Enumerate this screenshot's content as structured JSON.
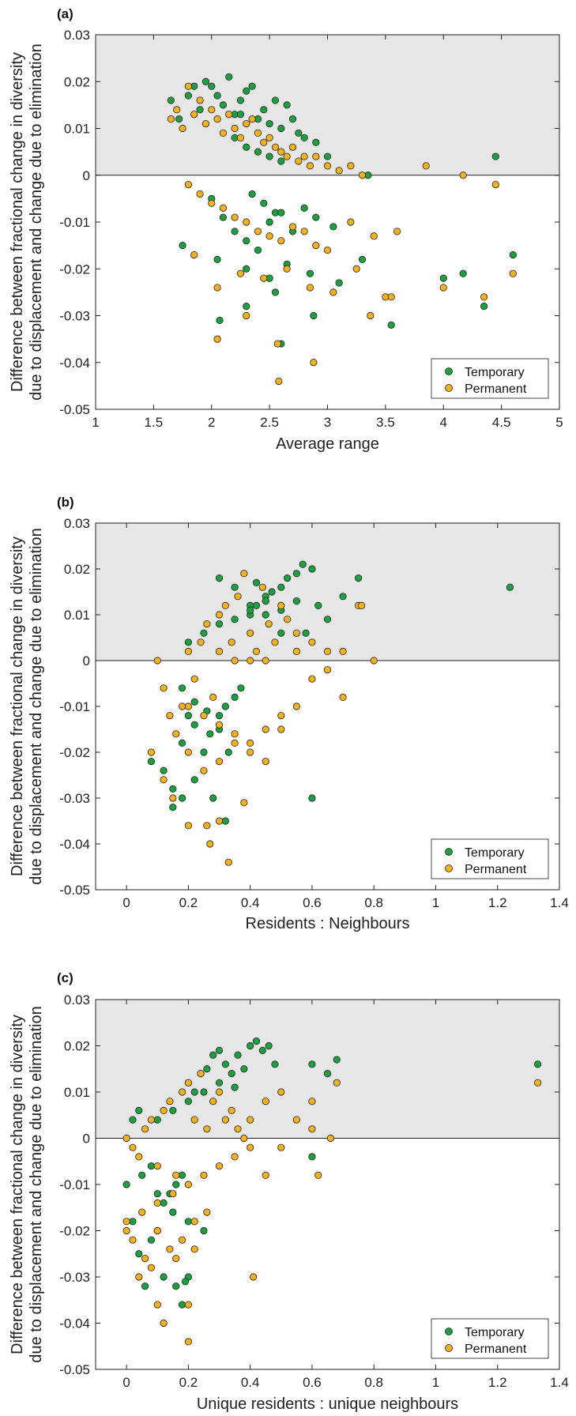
{
  "colors": {
    "temporary": "#1aa040",
    "permanent": "#f5b21c",
    "shade": "#e6e6e6",
    "edge": "#222222"
  },
  "shared_ylabel": [
    "Difference between fractional change in diversity",
    "due to displacement and change due to elimination"
  ],
  "legend": {
    "temporary": "Temporary",
    "permanent": "Permanent",
    "placement": "bottom-right"
  },
  "chart_data": [
    {
      "type": "scatter",
      "panel": "(a)",
      "xlabel": "Average range",
      "xlim": [
        1,
        5
      ],
      "ylim": [
        -0.05,
        0.03
      ],
      "xticks": [
        1,
        1.5,
        2,
        2.5,
        3,
        3.5,
        4,
        4.5,
        5
      ],
      "xtick_labels": [
        "1",
        "1.5",
        "2",
        "2.5",
        "3",
        "3.5",
        "4",
        "4.5",
        "5"
      ],
      "yticks": [
        -0.05,
        -0.04,
        -0.03,
        -0.02,
        -0.01,
        0,
        0.01,
        0.02,
        0.03
      ],
      "ytick_labels": [
        "-0.05",
        "-0.04",
        "-0.03",
        "-0.02",
        "-0.01",
        "0",
        "0.01",
        "0.02",
        "0.03"
      ],
      "shaded_region": [
        0,
        0.03
      ],
      "grid": false,
      "series": [
        {
          "name": "Temporary",
          "x": [
            1.65,
            1.72,
            1.8,
            1.85,
            1.9,
            1.95,
            2.0,
            2.05,
            2.1,
            2.15,
            2.2,
            2.25,
            2.3,
            2.35,
            2.4,
            2.45,
            2.5,
            2.55,
            2.6,
            2.65,
            2.7,
            2.75,
            2.8,
            2.9,
            3.0,
            2.2,
            2.3,
            2.4,
            2.5,
            2.6,
            2.35,
            2.45,
            2.55,
            2.0,
            2.1,
            2.2,
            2.3,
            2.4,
            2.5,
            2.6,
            2.7,
            2.8,
            2.9,
            3.05,
            1.75,
            2.05,
            2.3,
            2.5,
            2.65,
            2.85,
            3.1,
            3.3,
            3.55,
            4.0,
            4.17,
            4.35,
            4.45,
            4.6,
            2.07,
            2.3,
            2.55,
            2.88,
            3.35,
            2.6,
            2.25
          ],
          "y": [
            0.016,
            0.012,
            0.017,
            0.019,
            0.014,
            0.02,
            0.019,
            0.017,
            0.015,
            0.021,
            0.013,
            0.016,
            0.018,
            0.019,
            0.012,
            0.014,
            0.011,
            0.016,
            0.01,
            0.015,
            0.012,
            0.009,
            0.008,
            0.007,
            0.004,
            0.008,
            0.006,
            0.005,
            0.004,
            0.003,
            -0.004,
            -0.006,
            -0.008,
            -0.005,
            -0.009,
            -0.012,
            -0.014,
            -0.016,
            -0.01,
            -0.008,
            -0.012,
            -0.007,
            -0.009,
            -0.011,
            -0.015,
            -0.018,
            -0.02,
            -0.022,
            -0.019,
            -0.021,
            -0.023,
            -0.018,
            -0.032,
            -0.022,
            -0.021,
            -0.028,
            0.004,
            -0.017,
            -0.031,
            -0.028,
            -0.025,
            -0.03,
            0.0,
            -0.036,
            0.013
          ]
        },
        {
          "name": "Permanent",
          "x": [
            1.65,
            1.7,
            1.75,
            1.8,
            1.85,
            1.9,
            1.95,
            2.0,
            2.05,
            2.1,
            2.15,
            2.2,
            2.25,
            2.3,
            2.35,
            2.4,
            2.45,
            2.5,
            2.55,
            2.6,
            2.65,
            2.7,
            2.75,
            2.8,
            2.85,
            2.9,
            3.0,
            3.1,
            3.2,
            3.3,
            1.8,
            1.9,
            2.0,
            2.1,
            2.2,
            2.3,
            2.4,
            2.5,
            2.6,
            2.7,
            2.8,
            2.9,
            3.0,
            3.2,
            3.4,
            3.6,
            1.85,
            2.05,
            2.25,
            2.45,
            2.65,
            2.85,
            3.05,
            3.25,
            3.5,
            3.85,
            4.0,
            4.17,
            4.35,
            4.45,
            4.6,
            2.05,
            2.3,
            2.58,
            2.88,
            3.37,
            3.55,
            2.57
          ],
          "y": [
            0.012,
            0.014,
            0.01,
            0.019,
            0.013,
            0.016,
            0.011,
            0.014,
            0.012,
            0.009,
            0.013,
            0.01,
            0.008,
            0.011,
            0.012,
            0.009,
            0.007,
            0.008,
            0.006,
            0.005,
            0.004,
            0.006,
            0.003,
            0.004,
            0.002,
            0.004,
            0.002,
            0.001,
            0.002,
            0.0,
            -0.002,
            -0.004,
            -0.006,
            -0.007,
            -0.009,
            -0.01,
            -0.012,
            -0.013,
            -0.014,
            -0.011,
            -0.012,
            -0.015,
            -0.016,
            -0.01,
            -0.013,
            -0.012,
            -0.017,
            -0.024,
            -0.021,
            -0.022,
            -0.02,
            -0.024,
            -0.025,
            -0.02,
            -0.026,
            0.002,
            -0.024,
            0.0,
            -0.026,
            -0.002,
            -0.021,
            -0.035,
            -0.03,
            -0.044,
            -0.04,
            -0.03,
            -0.026,
            -0.036
          ]
        }
      ]
    },
    {
      "type": "scatter",
      "panel": "(b)",
      "xlabel": "Residents : Neighbours",
      "xlim": [
        -0.1,
        1.4
      ],
      "ylim": [
        -0.05,
        0.03
      ],
      "xticks": [
        0,
        0.2,
        0.4,
        0.6,
        0.8,
        1,
        1.2,
        1.4
      ],
      "xtick_labels": [
        "0",
        "0.2",
        "0.4",
        "0.6",
        "0.8",
        "1",
        "1.2",
        "1.4"
      ],
      "yticks": [
        -0.05,
        -0.04,
        -0.03,
        -0.02,
        -0.01,
        0,
        0.01,
        0.02,
        0.03
      ],
      "ytick_labels": [
        "-0.05",
        "-0.04",
        "-0.03",
        "-0.02",
        "-0.01",
        "0",
        "0.01",
        "0.02",
        "0.03"
      ],
      "shaded_region": [
        0,
        0.03
      ],
      "grid": false,
      "series": [
        {
          "name": "Temporary",
          "x": [
            0.08,
            0.12,
            0.15,
            0.18,
            0.2,
            0.22,
            0.25,
            0.27,
            0.3,
            0.32,
            0.35,
            0.37,
            0.4,
            0.42,
            0.45,
            0.47,
            0.5,
            0.52,
            0.55,
            0.57,
            0.6,
            0.62,
            0.65,
            0.7,
            0.75,
            0.3,
            0.35,
            0.4,
            0.45,
            0.5,
            0.55,
            0.2,
            0.25,
            0.3,
            0.35,
            0.4,
            0.45,
            0.18,
            0.22,
            0.26,
            0.3,
            0.33,
            0.15,
            0.18,
            0.22,
            0.28,
            0.32,
            0.6,
            1.24,
            0.58,
            0.5,
            0.42
          ],
          "y": [
            -0.022,
            -0.024,
            -0.028,
            -0.018,
            -0.012,
            -0.014,
            -0.02,
            -0.016,
            -0.012,
            -0.01,
            -0.008,
            -0.006,
            0.01,
            0.012,
            0.014,
            0.015,
            0.016,
            0.018,
            0.019,
            0.021,
            0.02,
            0.012,
            0.009,
            0.014,
            0.018,
            0.018,
            0.016,
            0.012,
            0.01,
            0.011,
            0.013,
            0.004,
            0.006,
            0.008,
            0.009,
            0.011,
            0.013,
            -0.006,
            -0.009,
            -0.011,
            -0.015,
            -0.02,
            -0.032,
            -0.03,
            -0.026,
            -0.03,
            -0.035,
            -0.03,
            0.016,
            0.006,
            0.006,
            0.017
          ]
        },
        {
          "name": "Permanent",
          "x": [
            0.1,
            0.12,
            0.14,
            0.16,
            0.18,
            0.2,
            0.22,
            0.24,
            0.26,
            0.28,
            0.3,
            0.32,
            0.34,
            0.36,
            0.38,
            0.4,
            0.42,
            0.44,
            0.46,
            0.48,
            0.5,
            0.52,
            0.55,
            0.6,
            0.65,
            0.7,
            0.75,
            0.8,
            0.2,
            0.25,
            0.3,
            0.35,
            0.4,
            0.45,
            0.5,
            0.55,
            0.6,
            0.65,
            0.7,
            0.2,
            0.25,
            0.3,
            0.35,
            0.4,
            0.45,
            0.5,
            0.3,
            0.35,
            0.4,
            0.45,
            0.55,
            0.08,
            0.12,
            0.15,
            0.2,
            0.27,
            0.3,
            0.33,
            0.38,
            0.26,
            0.76
          ],
          "y": [
            0.0,
            -0.006,
            -0.012,
            -0.016,
            -0.01,
            0.002,
            -0.004,
            0.004,
            0.008,
            -0.008,
            0.01,
            0.012,
            0.004,
            0.014,
            0.019,
            0.006,
            0.002,
            0.016,
            0.008,
            0.004,
            0.012,
            0.009,
            0.006,
            0.004,
            0.002,
            0.002,
            0.012,
            0.0,
            -0.01,
            -0.012,
            -0.014,
            -0.016,
            -0.018,
            -0.015,
            -0.012,
            -0.01,
            -0.004,
            -0.002,
            -0.008,
            -0.02,
            -0.024,
            -0.022,
            -0.018,
            -0.02,
            -0.022,
            -0.015,
            0.002,
            0.0,
            0.0,
            0.0,
            0.002,
            -0.02,
            -0.026,
            -0.03,
            -0.036,
            -0.04,
            -0.035,
            -0.044,
            -0.031,
            -0.036,
            0.012
          ]
        }
      ]
    },
    {
      "type": "scatter",
      "panel": "(c)",
      "xlabel": "Unique residents : unique neighbours",
      "xlim": [
        -0.1,
        1.4
      ],
      "ylim": [
        -0.05,
        0.03
      ],
      "xticks": [
        0,
        0.2,
        0.4,
        0.6,
        0.8,
        1,
        1.2,
        1.4
      ],
      "xtick_labels": [
        "0",
        "0.2",
        "0.4",
        "0.6",
        "0.8",
        "1",
        "1.2",
        "1.4"
      ],
      "yticks": [
        -0.05,
        -0.04,
        -0.03,
        -0.02,
        -0.01,
        0,
        0.01,
        0.02,
        0.03
      ],
      "ytick_labels": [
        "-0.05",
        "-0.04",
        "-0.03",
        "-0.02",
        "-0.01",
        "0",
        "0.01",
        "0.02",
        "0.03"
      ],
      "shaded_region": [
        0,
        0.03
      ],
      "grid": false,
      "series": [
        {
          "name": "Temporary",
          "x": [
            0.0,
            0.02,
            0.04,
            0.06,
            0.08,
            0.1,
            0.12,
            0.14,
            0.16,
            0.18,
            0.2,
            0.22,
            0.24,
            0.26,
            0.28,
            0.3,
            0.32,
            0.34,
            0.36,
            0.38,
            0.4,
            0.42,
            0.44,
            0.46,
            0.48,
            0.6,
            0.65,
            0.68,
            0.6,
            0.1,
            0.15,
            0.2,
            0.25,
            0.3,
            0.35,
            0.05,
            0.1,
            0.15,
            0.2,
            0.25,
            0.12,
            0.16,
            0.2,
            1.33,
            0.02,
            0.04,
            0.08,
            0.18,
            0.19
          ],
          "y": [
            -0.01,
            -0.018,
            -0.025,
            -0.032,
            -0.022,
            -0.02,
            -0.014,
            -0.012,
            -0.01,
            -0.008,
            0.012,
            0.01,
            0.014,
            0.015,
            0.018,
            0.019,
            0.016,
            0.014,
            0.018,
            0.015,
            0.02,
            0.021,
            0.019,
            0.02,
            0.016,
            0.016,
            0.014,
            0.017,
            -0.004,
            0.004,
            0.006,
            0.008,
            0.01,
            0.012,
            0.011,
            -0.008,
            -0.012,
            -0.016,
            -0.018,
            -0.02,
            -0.03,
            -0.032,
            -0.03,
            0.016,
            0.004,
            0.006,
            -0.006,
            -0.036,
            -0.031
          ]
        },
        {
          "name": "Permanent",
          "x": [
            0.0,
            0.02,
            0.04,
            0.06,
            0.08,
            0.1,
            0.12,
            0.14,
            0.16,
            0.18,
            0.2,
            0.22,
            0.24,
            0.26,
            0.28,
            0.3,
            0.32,
            0.34,
            0.36,
            0.38,
            0.4,
            0.45,
            0.5,
            0.55,
            0.6,
            0.66,
            0.68,
            0.0,
            0.05,
            0.1,
            0.15,
            0.2,
            0.25,
            0.3,
            0.35,
            0.4,
            0.45,
            0.5,
            0.6,
            0.62,
            0.02,
            0.06,
            0.1,
            0.14,
            0.18,
            0.22,
            0.26,
            0.1,
            0.12,
            0.2,
            0.41,
            1.33,
            0.0,
            0.04,
            0.08,
            0.16,
            0.2,
            0.22
          ],
          "y": [
            0.0,
            -0.002,
            -0.004,
            0.002,
            0.004,
            -0.006,
            0.006,
            0.008,
            -0.008,
            0.01,
            0.012,
            0.004,
            0.014,
            0.002,
            0.008,
            0.01,
            0.004,
            0.006,
            0.002,
            0.0,
            0.004,
            0.008,
            0.01,
            0.004,
            0.008,
            0.0,
            0.012,
            -0.018,
            -0.016,
            -0.014,
            -0.012,
            -0.01,
            -0.008,
            -0.006,
            -0.004,
            -0.002,
            -0.008,
            -0.002,
            0.002,
            -0.008,
            -0.022,
            -0.026,
            -0.02,
            -0.024,
            -0.022,
            -0.018,
            -0.016,
            -0.036,
            -0.04,
            -0.044,
            -0.03,
            0.012,
            -0.02,
            -0.03,
            -0.028,
            -0.026,
            -0.036,
            -0.024
          ]
        }
      ]
    }
  ]
}
